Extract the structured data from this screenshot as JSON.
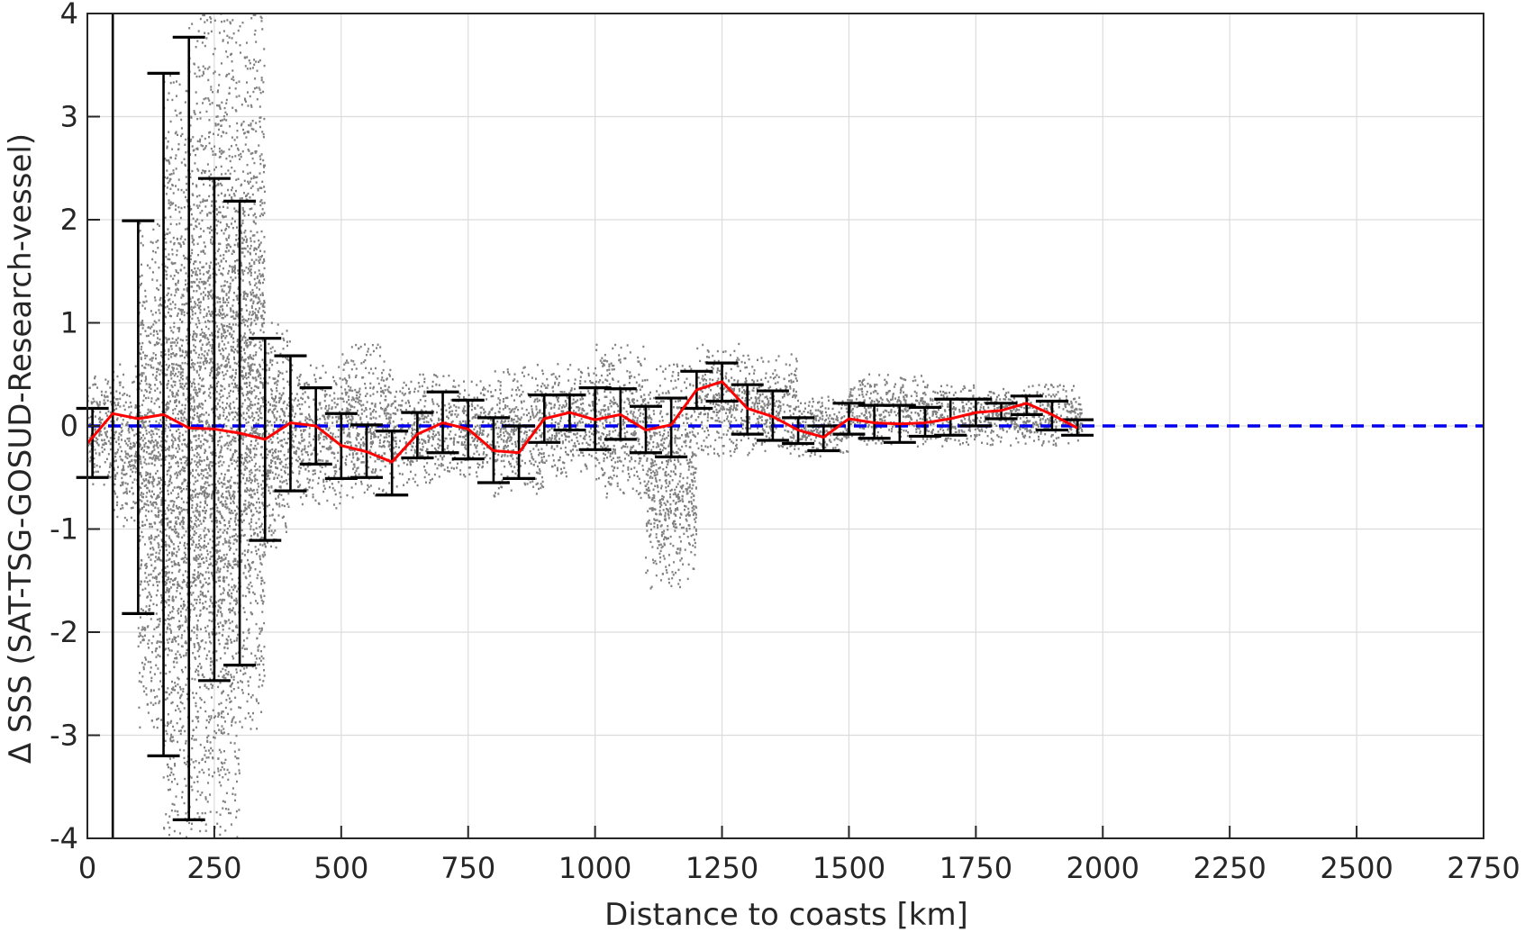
{
  "chart_data": {
    "type": "scatter",
    "xlabel": "Distance to coasts [km]",
    "ylabel": "Δ SSS (SAT-TSG-GOSUD-Research-vessel)",
    "xlim": [
      0,
      2750
    ],
    "ylim": [
      -4,
      4
    ],
    "xticks": [
      0,
      250,
      500,
      750,
      1000,
      1250,
      1500,
      1750,
      2000,
      2250,
      2500,
      2750
    ],
    "yticks": [
      -4,
      -3,
      -2,
      -1,
      0,
      1,
      2,
      3,
      4
    ],
    "grid": true,
    "colors": {
      "scatter": "#808080",
      "mean": "#ff0000",
      "zero": "#0000ee",
      "errorbar": "#000000"
    },
    "zero_line": {
      "y": 0,
      "style": "dashed"
    },
    "mean_line": {
      "x": [
        0,
        50,
        100,
        150,
        200,
        250,
        300,
        350,
        400,
        450,
        500,
        550,
        600,
        650,
        700,
        750,
        800,
        850,
        900,
        950,
        1000,
        1050,
        1100,
        1150,
        1200,
        1250,
        1300,
        1350,
        1400,
        1450,
        1500,
        1550,
        1600,
        1650,
        1700,
        1750,
        1800,
        1850,
        1900,
        1950
      ],
      "y": [
        -0.17,
        0.12,
        0.07,
        0.11,
        -0.02,
        -0.03,
        -0.07,
        -0.13,
        0.03,
        0.0,
        -0.19,
        -0.25,
        -0.35,
        -0.08,
        0.03,
        -0.03,
        -0.24,
        -0.26,
        0.07,
        0.13,
        0.06,
        0.11,
        -0.04,
        0.01,
        0.35,
        0.43,
        0.17,
        0.09,
        -0.04,
        -0.11,
        0.07,
        0.03,
        0.02,
        0.03,
        0.07,
        0.13,
        0.15,
        0.22,
        0.11,
        -0.02
      ]
    },
    "error_bars": [
      {
        "x": 10,
        "lower": -0.5,
        "upper": 0.17
      },
      {
        "x": 50,
        "lower": -4.0,
        "upper": 4.0
      },
      {
        "x": 100,
        "lower": -1.82,
        "upper": 1.99
      },
      {
        "x": 150,
        "lower": -3.2,
        "upper": 3.42
      },
      {
        "x": 200,
        "lower": -3.82,
        "upper": 3.77
      },
      {
        "x": 250,
        "lower": -2.47,
        "upper": 2.4
      },
      {
        "x": 300,
        "lower": -2.32,
        "upper": 2.18
      },
      {
        "x": 350,
        "lower": -1.11,
        "upper": 0.85
      },
      {
        "x": 400,
        "lower": -0.63,
        "upper": 0.68
      },
      {
        "x": 450,
        "lower": -0.37,
        "upper": 0.37
      },
      {
        "x": 500,
        "lower": -0.51,
        "upper": 0.12
      },
      {
        "x": 550,
        "lower": -0.5,
        "upper": 0.01
      },
      {
        "x": 600,
        "lower": -0.67,
        "upper": -0.05
      },
      {
        "x": 650,
        "lower": -0.31,
        "upper": 0.13
      },
      {
        "x": 700,
        "lower": -0.26,
        "upper": 0.33
      },
      {
        "x": 750,
        "lower": -0.32,
        "upper": 0.25
      },
      {
        "x": 800,
        "lower": -0.55,
        "upper": 0.08
      },
      {
        "x": 850,
        "lower": -0.51,
        "upper": 0.0
      },
      {
        "x": 900,
        "lower": -0.16,
        "upper": 0.3
      },
      {
        "x": 950,
        "lower": -0.04,
        "upper": 0.3
      },
      {
        "x": 1000,
        "lower": -0.23,
        "upper": 0.37
      },
      {
        "x": 1050,
        "lower": -0.13,
        "upper": 0.36
      },
      {
        "x": 1100,
        "lower": -0.26,
        "upper": 0.19
      },
      {
        "x": 1150,
        "lower": -0.3,
        "upper": 0.27
      },
      {
        "x": 1200,
        "lower": 0.17,
        "upper": 0.53
      },
      {
        "x": 1250,
        "lower": 0.24,
        "upper": 0.61
      },
      {
        "x": 1300,
        "lower": -0.08,
        "upper": 0.4
      },
      {
        "x": 1350,
        "lower": -0.14,
        "upper": 0.34
      },
      {
        "x": 1400,
        "lower": -0.17,
        "upper": 0.08
      },
      {
        "x": 1450,
        "lower": -0.24,
        "upper": 0.0
      },
      {
        "x": 1500,
        "lower": -0.08,
        "upper": 0.22
      },
      {
        "x": 1550,
        "lower": -0.12,
        "upper": 0.2
      },
      {
        "x": 1600,
        "lower": -0.16,
        "upper": 0.2
      },
      {
        "x": 1650,
        "lower": -0.1,
        "upper": 0.18
      },
      {
        "x": 1700,
        "lower": -0.09,
        "upper": 0.26
      },
      {
        "x": 1750,
        "lower": 0.0,
        "upper": 0.26
      },
      {
        "x": 1800,
        "lower": 0.07,
        "upper": 0.22
      },
      {
        "x": 1850,
        "lower": 0.11,
        "upper": 0.29
      },
      {
        "x": 1900,
        "lower": -0.04,
        "upper": 0.24
      },
      {
        "x": 1950,
        "lower": -0.09,
        "upper": 0.06
      }
    ],
    "scatter_envelope": [
      {
        "x_min": 0,
        "x_max": 50,
        "low": -0.6,
        "high": 0.5
      },
      {
        "x_min": 50,
        "x_max": 100,
        "low": -1.0,
        "high": 0.6
      },
      {
        "x_min": 100,
        "x_max": 150,
        "low": -3.0,
        "high": 2.0
      },
      {
        "x_min": 150,
        "x_max": 200,
        "low": -4.0,
        "high": 3.4
      },
      {
        "x_min": 200,
        "x_max": 250,
        "low": -4.0,
        "high": 4.0
      },
      {
        "x_min": 250,
        "x_max": 300,
        "low": -4.0,
        "high": 4.0
      },
      {
        "x_min": 300,
        "x_max": 350,
        "low": -3.0,
        "high": 4.0
      },
      {
        "x_min": 350,
        "x_max": 400,
        "low": -1.2,
        "high": 1.0
      },
      {
        "x_min": 400,
        "x_max": 500,
        "low": -0.8,
        "high": 0.6
      },
      {
        "x_min": 500,
        "x_max": 600,
        "low": -0.7,
        "high": 0.8
      },
      {
        "x_min": 600,
        "x_max": 700,
        "low": -0.6,
        "high": 0.5
      },
      {
        "x_min": 700,
        "x_max": 800,
        "low": -0.5,
        "high": 0.5
      },
      {
        "x_min": 800,
        "x_max": 900,
        "low": -0.7,
        "high": 0.6
      },
      {
        "x_min": 900,
        "x_max": 1000,
        "low": -0.5,
        "high": 0.6
      },
      {
        "x_min": 1000,
        "x_max": 1100,
        "low": -0.7,
        "high": 0.8
      },
      {
        "x_min": 1100,
        "x_max": 1200,
        "low": -1.6,
        "high": 0.6
      },
      {
        "x_min": 1200,
        "x_max": 1300,
        "low": -0.3,
        "high": 0.8
      },
      {
        "x_min": 1300,
        "x_max": 1400,
        "low": -0.3,
        "high": 0.7
      },
      {
        "x_min": 1400,
        "x_max": 1500,
        "low": -0.3,
        "high": 0.3
      },
      {
        "x_min": 1500,
        "x_max": 1650,
        "low": -0.2,
        "high": 0.5
      },
      {
        "x_min": 1650,
        "x_max": 1800,
        "low": -0.2,
        "high": 0.4
      },
      {
        "x_min": 1800,
        "x_max": 1960,
        "low": -0.2,
        "high": 0.4
      }
    ]
  }
}
